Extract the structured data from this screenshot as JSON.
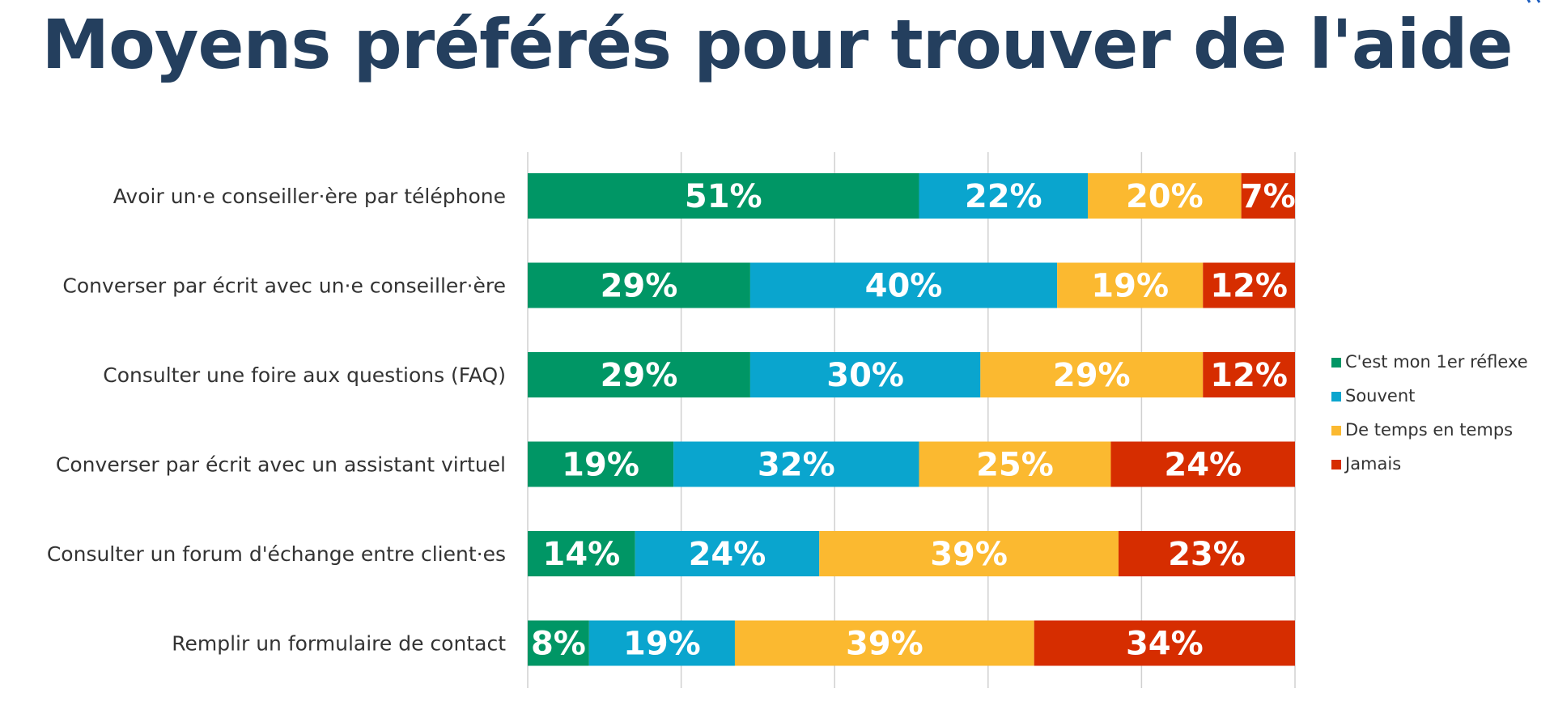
{
  "chart_data": {
    "type": "bar",
    "orientation": "horizontal",
    "stacked": true,
    "title": "Moyens préférés pour trouver de l'aide",
    "categories": [
      "Avoir un·e conseiller·ère par téléphone",
      "Converser par écrit avec un·e conseiller·ère",
      "Consulter une foire aux questions (FAQ)",
      "Converser par écrit avec un assistant virtuel",
      "Consulter un forum d'échange entre client·es",
      "Remplir un formulaire de contact"
    ],
    "series": [
      {
        "name": "C'est mon 1er réflexe",
        "color": "#009665",
        "values": [
          51,
          29,
          29,
          19,
          14,
          8
        ]
      },
      {
        "name": "Souvent",
        "color": "#0aa5ce",
        "values": [
          22,
          40,
          30,
          32,
          24,
          19
        ]
      },
      {
        "name": "De temps en temps",
        "color": "#fbb930",
        "values": [
          20,
          19,
          29,
          25,
          39,
          39
        ]
      },
      {
        "name": "Jamais",
        "color": "#d62d00",
        "values": [
          7,
          12,
          12,
          24,
          23,
          34
        ]
      }
    ],
    "value_suffix": "%",
    "xlim": [
      0,
      100
    ],
    "grid": true,
    "legend_position": "right"
  },
  "theme": {
    "title_color": "#243f5e",
    "grid_color": "#d0d0d0",
    "corner_mark_color": "#1f5fbf"
  }
}
